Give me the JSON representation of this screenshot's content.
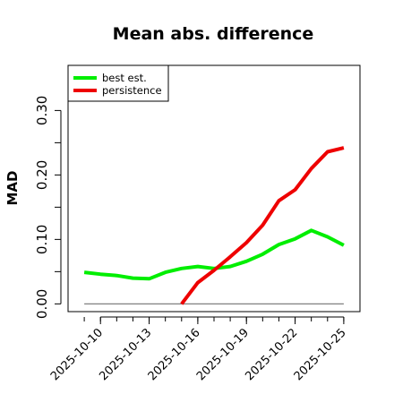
{
  "chart_data": {
    "type": "line",
    "title": "Mean abs. difference",
    "ylabel": "MAD",
    "xlabel": "",
    "x_tick_labels": [
      "2025-10-10",
      "2025-10-13",
      "2025-10-16",
      "2025-10-19",
      "2025-10-22",
      "2025-10-25"
    ],
    "y_ticks": [
      0.0,
      0.1,
      0.2,
      0.3
    ],
    "y_tick_labels": [
      "0.00",
      "0.10",
      "0.20",
      "0.30"
    ],
    "xlim": [
      "2025-10-08",
      "2025-10-26"
    ],
    "ylim": [
      -0.012,
      0.37
    ],
    "grid": false,
    "legend_position": "top-left",
    "series": [
      {
        "name": "best est.",
        "color": "#00ee00",
        "x": [
          "2025-10-09",
          "2025-10-10",
          "2025-10-11",
          "2025-10-12",
          "2025-10-13",
          "2025-10-14",
          "2025-10-15",
          "2025-10-16",
          "2025-10-17",
          "2025-10-18",
          "2025-10-19",
          "2025-10-20",
          "2025-10-21",
          "2025-10-22",
          "2025-10-23",
          "2025-10-24",
          "2025-10-25"
        ],
        "values": [
          0.049,
          0.046,
          0.044,
          0.04,
          0.039,
          0.049,
          0.055,
          0.058,
          0.055,
          0.058,
          0.066,
          0.077,
          0.092,
          0.101,
          0.114,
          0.104,
          0.091
        ]
      },
      {
        "name": "persistence",
        "color": "#ee0000",
        "x": [
          "2025-10-15",
          "2025-10-16",
          "2025-10-17",
          "2025-10-18",
          "2025-10-19",
          "2025-10-20",
          "2025-10-21",
          "2025-10-22",
          "2025-10-23",
          "2025-10-24",
          "2025-10-25"
        ],
        "values": [
          0.0,
          0.033,
          0.052,
          0.073,
          0.095,
          0.122,
          0.16,
          0.177,
          0.21,
          0.236,
          0.242
        ]
      },
      {
        "name": "",
        "color": "#808080",
        "x": [
          "2025-10-09",
          "2025-10-25"
        ],
        "values": [
          0.0,
          0.0
        ]
      }
    ]
  }
}
